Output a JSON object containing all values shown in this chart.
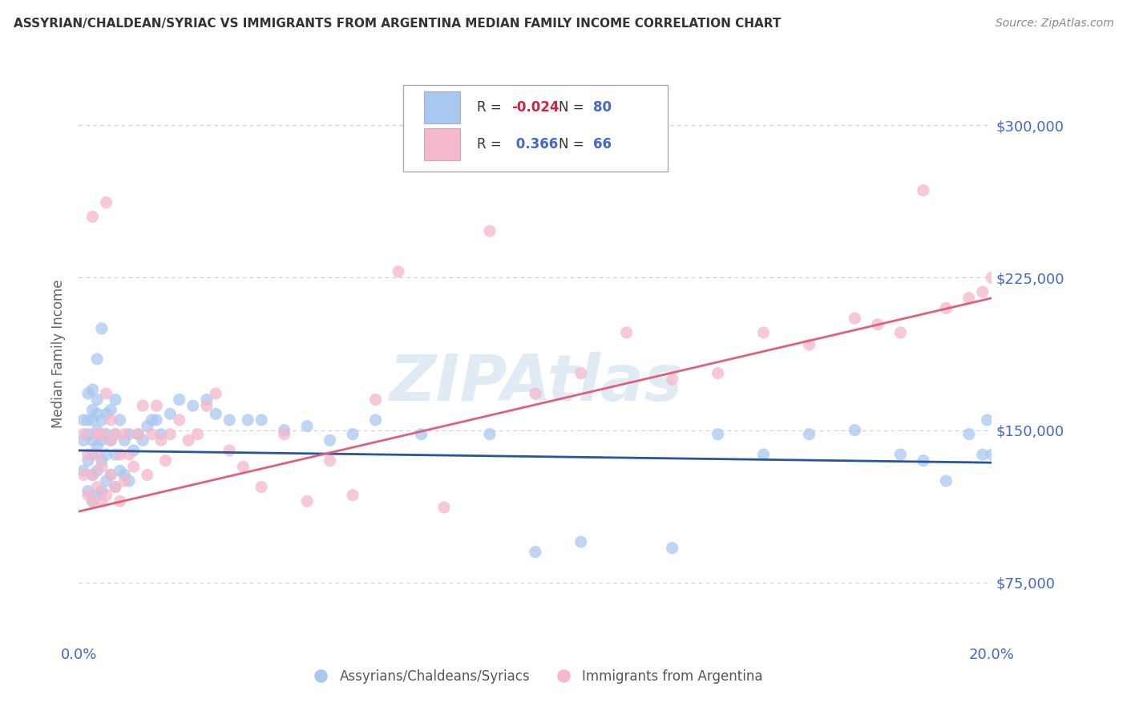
{
  "title": "ASSYRIAN/CHALDEAN/SYRIAC VS IMMIGRANTS FROM ARGENTINA MEDIAN FAMILY INCOME CORRELATION CHART",
  "source": "Source: ZipAtlas.com",
  "ylabel": "Median Family Income",
  "xlim": [
    0.0,
    0.2
  ],
  "ylim": [
    45000,
    330000
  ],
  "yticks": [
    75000,
    150000,
    225000,
    300000
  ],
  "xticks": [
    0.0,
    0.04,
    0.08,
    0.12,
    0.16,
    0.2
  ],
  "series1_color": "#a8c8f0",
  "series2_color": "#f5b8cc",
  "line1_color": "#2855a0",
  "line2_color": "#e0607a",
  "R1": -0.024,
  "N1": 80,
  "R2": 0.366,
  "N2": 66,
  "watermark": "ZIPAtlas",
  "grid_color": "#cccccc",
  "axis_label_color": "#4466cc",
  "background_color": "#ffffff",
  "line1_y0": 140000,
  "line1_y1": 134000,
  "line2_y0": 110000,
  "line2_y1": 215000,
  "series1_x": [
    0.001,
    0.001,
    0.001,
    0.002,
    0.002,
    0.002,
    0.002,
    0.002,
    0.003,
    0.003,
    0.003,
    0.003,
    0.003,
    0.003,
    0.003,
    0.004,
    0.004,
    0.004,
    0.004,
    0.004,
    0.004,
    0.004,
    0.005,
    0.005,
    0.005,
    0.005,
    0.005,
    0.006,
    0.006,
    0.006,
    0.006,
    0.007,
    0.007,
    0.007,
    0.008,
    0.008,
    0.008,
    0.008,
    0.009,
    0.009,
    0.01,
    0.01,
    0.011,
    0.011,
    0.012,
    0.013,
    0.014,
    0.015,
    0.016,
    0.017,
    0.018,
    0.02,
    0.022,
    0.025,
    0.028,
    0.03,
    0.033,
    0.037,
    0.04,
    0.045,
    0.05,
    0.055,
    0.06,
    0.065,
    0.075,
    0.09,
    0.1,
    0.11,
    0.13,
    0.14,
    0.15,
    0.16,
    0.17,
    0.18,
    0.185,
    0.19,
    0.195,
    0.198,
    0.199,
    0.2
  ],
  "series1_y": [
    130000,
    145000,
    155000,
    120000,
    135000,
    148000,
    155000,
    168000,
    115000,
    128000,
    138000,
    145000,
    155000,
    160000,
    170000,
    118000,
    130000,
    142000,
    150000,
    158000,
    165000,
    185000,
    120000,
    135000,
    145000,
    155000,
    200000,
    125000,
    138000,
    148000,
    158000,
    128000,
    145000,
    160000,
    122000,
    138000,
    148000,
    165000,
    130000,
    155000,
    128000,
    145000,
    125000,
    148000,
    140000,
    148000,
    145000,
    152000,
    155000,
    155000,
    148000,
    158000,
    165000,
    162000,
    165000,
    158000,
    155000,
    155000,
    155000,
    150000,
    152000,
    145000,
    148000,
    155000,
    148000,
    148000,
    90000,
    95000,
    92000,
    148000,
    138000,
    148000,
    150000,
    138000,
    135000,
    125000,
    148000,
    138000,
    155000,
    138000
  ],
  "series2_x": [
    0.001,
    0.001,
    0.002,
    0.002,
    0.003,
    0.003,
    0.003,
    0.004,
    0.004,
    0.004,
    0.005,
    0.005,
    0.005,
    0.006,
    0.006,
    0.006,
    0.007,
    0.007,
    0.007,
    0.008,
    0.008,
    0.009,
    0.009,
    0.01,
    0.01,
    0.011,
    0.012,
    0.013,
    0.014,
    0.015,
    0.016,
    0.017,
    0.018,
    0.019,
    0.02,
    0.022,
    0.024,
    0.026,
    0.028,
    0.03,
    0.033,
    0.036,
    0.04,
    0.045,
    0.05,
    0.055,
    0.06,
    0.065,
    0.07,
    0.08,
    0.09,
    0.1,
    0.11,
    0.12,
    0.13,
    0.14,
    0.15,
    0.16,
    0.17,
    0.175,
    0.18,
    0.185,
    0.19,
    0.195,
    0.198,
    0.2
  ],
  "series2_y": [
    128000,
    148000,
    118000,
    138000,
    115000,
    128000,
    255000,
    122000,
    138000,
    148000,
    115000,
    132000,
    148000,
    118000,
    168000,
    262000,
    128000,
    145000,
    155000,
    122000,
    148000,
    115000,
    138000,
    125000,
    148000,
    138000,
    132000,
    148000,
    162000,
    128000,
    148000,
    162000,
    145000,
    135000,
    148000,
    155000,
    145000,
    148000,
    162000,
    168000,
    140000,
    132000,
    122000,
    148000,
    115000,
    135000,
    118000,
    165000,
    228000,
    112000,
    248000,
    168000,
    178000,
    198000,
    175000,
    178000,
    198000,
    192000,
    205000,
    202000,
    198000,
    268000,
    210000,
    215000,
    218000,
    225000
  ]
}
